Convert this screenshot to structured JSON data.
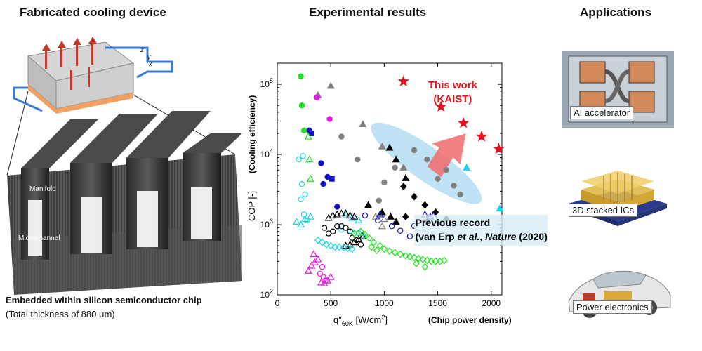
{
  "titles": {
    "left": "Fabricated cooling device",
    "middle": "Experimental results",
    "right": "Applications"
  },
  "device": {
    "label_manifold": "Manifold",
    "label_microchannel": "Microchannel",
    "axes": {
      "z": "z",
      "y": "y",
      "x": "x"
    },
    "caption_bold": "Embedded within silicon semiconductor chip",
    "caption": "(Total thickness of 880 μm)"
  },
  "applications": [
    {
      "label": "AI accelerator"
    },
    {
      "label": "3D stacked ICs"
    },
    {
      "label": "Power electronics"
    }
  ],
  "colors": {
    "this_work": "#e0141e",
    "record_highlight": "#bfe3f5",
    "arrow": "#f26b6b"
  },
  "chart_data": {
    "type": "scatter",
    "y_scale": "log",
    "xlim": [
      0,
      2100
    ],
    "ylim": [
      100,
      200000
    ],
    "x_ticks": [
      "0",
      "500",
      "1000",
      "1500",
      "2000"
    ],
    "y_ticks": [
      {
        "value": 100,
        "base": "10",
        "exp": "2"
      },
      {
        "value": 1000,
        "base": "10",
        "exp": "3"
      },
      {
        "value": 10000,
        "base": "10",
        "exp": "4"
      },
      {
        "value": 100000,
        "base": "10",
        "exp": "5"
      }
    ],
    "ylabel": "COP [-]",
    "ylabel_note": "(Cooling efficiency)",
    "xlabel_base": "q″",
    "xlabel_sub": "60K",
    "xlabel_unit": " [W/cm",
    "xlabel_sup": "2",
    "xlabel_close": "]",
    "xlabel_note": "(Chip power density)",
    "annotation_this_work": [
      "This work",
      "(KAIST)"
    ],
    "annotation_previous": {
      "line1": "Previous record",
      "line2_a": "(van Erp ",
      "line2_b": "et al.",
      "line2_c": ", ",
      "line2_d": "Nature",
      "line2_e": " (2020))"
    },
    "series": [
      {
        "marker": "star",
        "color": "#e0141e",
        "filled": true,
        "points": [
          [
            1180,
            110000
          ],
          [
            1530,
            48000
          ],
          [
            1740,
            28000
          ],
          [
            1910,
            18000
          ],
          [
            2070,
            12000
          ]
        ]
      },
      {
        "marker": "circle",
        "color": "#808080",
        "filled": true,
        "points": [
          [
            600,
            18000
          ],
          [
            750,
            8500
          ],
          [
            950,
            2200
          ],
          [
            1100,
            6500
          ],
          [
            1280,
            11500
          ],
          [
            1400,
            8500
          ],
          [
            1500,
            4500
          ],
          [
            1580,
            6000
          ],
          [
            1650,
            3600
          ],
          [
            1710,
            2700
          ],
          [
            1000,
            4000
          ]
        ]
      },
      {
        "marker": "triangle",
        "color": "#808080",
        "filled": true,
        "points": [
          [
            500,
            95000
          ],
          [
            380,
            70000
          ],
          [
            800,
            27000
          ],
          [
            980,
            13000
          ],
          [
            1180,
            6500
          ]
        ]
      },
      {
        "marker": "triangle",
        "color": "#19d3e6",
        "filled": true,
        "points": [
          [
            1770,
            6500
          ],
          [
            2080,
            1700
          ]
        ]
      },
      {
        "marker": "circle",
        "color": "#1ee01e",
        "filled": true,
        "points": [
          [
            220,
            130000
          ],
          [
            230,
            50000
          ],
          [
            250,
            22000
          ]
        ]
      },
      {
        "marker": "circle",
        "color": "#e619e6",
        "filled": true,
        "points": [
          [
            370,
            65000
          ],
          [
            490,
            32000
          ]
        ]
      },
      {
        "marker": "circle",
        "color": "#1414c8",
        "filled": true,
        "points": [
          [
            300,
            22000
          ],
          [
            410,
            7500
          ],
          [
            470,
            4800
          ],
          [
            430,
            3800
          ],
          [
            560,
            1800
          ]
        ]
      },
      {
        "marker": "square",
        "color": "#1414c8",
        "filled": true,
        "points": [
          [
            320,
            20000
          ],
          [
            510,
            4500
          ]
        ]
      },
      {
        "marker": "triangle",
        "color": "#000000",
        "filled": true,
        "points": [
          [
            1050,
            12500
          ],
          [
            1110,
            8500
          ],
          [
            1200,
            4600
          ],
          [
            850,
            1900
          ],
          [
            980,
            1500
          ],
          [
            1060,
            1300
          ],
          [
            1110,
            1100
          ]
        ]
      },
      {
        "marker": "diamond",
        "color": "#000000",
        "filled": true,
        "points": [
          [
            1180,
            3500
          ],
          [
            1280,
            2500
          ],
          [
            1380,
            1900
          ],
          [
            1480,
            1500
          ],
          [
            1580,
            1200
          ],
          [
            1200,
            1300
          ],
          [
            1400,
            1100
          ]
        ]
      },
      {
        "marker": "circle",
        "color": "#19d3e6",
        "filled": false,
        "points": [
          [
            200,
            8500
          ],
          [
            240,
            9500
          ],
          [
            230,
            3800
          ],
          [
            260,
            2700
          ],
          [
            220,
            2300
          ],
          [
            250,
            1400
          ],
          [
            280,
            1150
          ],
          [
            600,
            850
          ],
          [
            700,
            780
          ],
          [
            760,
            760
          ],
          [
            800,
            700
          ]
        ]
      },
      {
        "marker": "triangle",
        "color": "#19d3e6",
        "filled": false,
        "points": [
          [
            180,
            1100
          ],
          [
            220,
            1000
          ],
          [
            260,
            1200
          ],
          [
            310,
            1300
          ],
          [
            640,
            1400
          ],
          [
            700,
            1250
          ],
          [
            760,
            1150
          ]
        ]
      },
      {
        "marker": "triangle",
        "color": "#1ee01e",
        "filled": false,
        "points": [
          [
            290,
            18000
          ],
          [
            300,
            8500
          ],
          [
            310,
            4500
          ]
        ]
      },
      {
        "marker": "triangle",
        "color": "#808080",
        "filled": false,
        "points": [
          [
            920,
            1300
          ],
          [
            980,
            950
          ],
          [
            1000,
            1200
          ]
        ]
      },
      {
        "marker": "triangle",
        "color": "#000000",
        "filled": false,
        "points": [
          [
            480,
            1250
          ],
          [
            520,
            1350
          ],
          [
            560,
            1400
          ],
          [
            600,
            1450
          ],
          [
            640,
            1450
          ],
          [
            680,
            1350
          ],
          [
            720,
            1300
          ],
          [
            640,
            500
          ],
          [
            680,
            520
          ],
          [
            720,
            560
          ],
          [
            760,
            620
          ],
          [
            800,
            680
          ]
        ]
      },
      {
        "marker": "circle",
        "color": "#000000",
        "filled": false,
        "points": [
          [
            440,
            900
          ],
          [
            480,
            750
          ],
          [
            520,
            800
          ],
          [
            560,
            950
          ],
          [
            600,
            950
          ],
          [
            640,
            900
          ],
          [
            680,
            800
          ],
          [
            700,
            650
          ],
          [
            740,
            600
          ],
          [
            780,
            520
          ]
        ]
      },
      {
        "marker": "circle",
        "color": "#1414c8",
        "filled": false,
        "points": [
          [
            820,
            1350
          ],
          [
            940,
            1150
          ],
          [
            1070,
            950
          ],
          [
            1150,
            820
          ],
          [
            1240,
            680
          ],
          [
            1280,
            960
          ]
        ]
      },
      {
        "marker": "triangle",
        "color": "#1414c8",
        "filled": false,
        "points": [
          [
            960,
            1400
          ],
          [
            1380,
            1400
          ],
          [
            1430,
            1300
          ],
          [
            1460,
            1350
          ]
        ]
      },
      {
        "marker": "diamond",
        "color": "#1ee01e",
        "filled": false,
        "points": [
          [
            720,
            750
          ],
          [
            780,
            800
          ],
          [
            820,
            720
          ],
          [
            860,
            640
          ],
          [
            900,
            560
          ],
          [
            960,
            500
          ],
          [
            1000,
            450
          ],
          [
            1050,
            420
          ],
          [
            1100,
            400
          ],
          [
            1150,
            380
          ],
          [
            1200,
            360
          ],
          [
            1240,
            350
          ],
          [
            1280,
            340
          ],
          [
            1320,
            330
          ],
          [
            1360,
            320
          ],
          [
            1400,
            310
          ],
          [
            1440,
            300
          ],
          [
            1480,
            300
          ],
          [
            1520,
            300
          ],
          [
            1560,
            310
          ],
          [
            1380,
            250
          ],
          [
            1300,
            280
          ],
          [
            880,
            480
          ],
          [
            930,
            430
          ]
        ]
      },
      {
        "marker": "diamond",
        "color": "#19d3e6",
        "filled": false,
        "points": [
          [
            380,
            600
          ],
          [
            420,
            560
          ],
          [
            460,
            520
          ],
          [
            500,
            500
          ],
          [
            540,
            480
          ],
          [
            580,
            480
          ],
          [
            620,
            470
          ],
          [
            660,
            460
          ],
          [
            700,
            450
          ]
        ]
      },
      {
        "marker": "triangle",
        "color": "#e619e6",
        "filled": false,
        "points": [
          [
            290,
            220
          ],
          [
            320,
            260
          ],
          [
            350,
            290
          ],
          [
            380,
            320
          ],
          [
            340,
            380
          ]
        ]
      },
      {
        "marker": "circle",
        "color": "#e619e6",
        "filled": false,
        "points": [
          [
            420,
            250
          ],
          [
            400,
            200
          ],
          [
            430,
            180
          ],
          [
            450,
            160
          ]
        ]
      },
      {
        "marker": "triangle",
        "color": "#e619e6",
        "filled": false,
        "points": [
          [
            410,
            150
          ],
          [
            440,
            145
          ],
          [
            470,
            160
          ],
          [
            500,
            180
          ]
        ]
      }
    ]
  }
}
